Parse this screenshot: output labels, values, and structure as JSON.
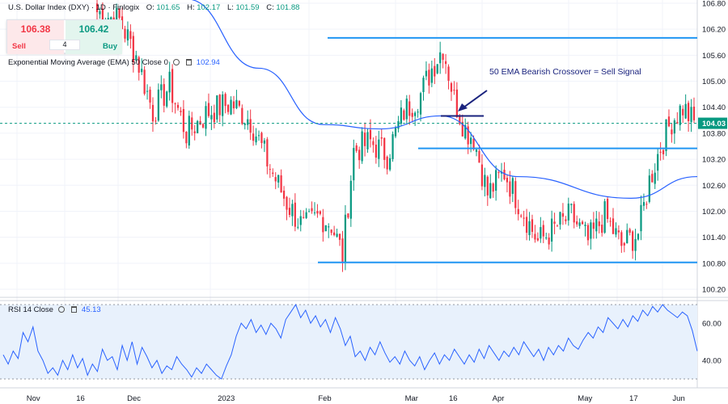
{
  "header": {
    "symbol": "U.S. Dollar Index (DXY) · 1D · Finlogix",
    "ohlc": [
      {
        "label": "O:",
        "value": "101.65"
      },
      {
        "label": "H:",
        "value": "102.17"
      },
      {
        "label": "L:",
        "value": "101.59"
      },
      {
        "label": "C:",
        "value": "101.88"
      }
    ]
  },
  "trade": {
    "sell_price": "106.38",
    "buy_price": "106.42",
    "sell_label": "Sell",
    "buy_label": "Buy",
    "quantity": "4"
  },
  "indicators": {
    "ema_label": "Exponential Moving Average (EMA) 50 Close 0",
    "ema_value": "102.94",
    "rsi_label": "RSI 14 Close",
    "rsi_value": "45.13"
  },
  "annotation": "50 EMA Bearish Crossover = Sell Signal",
  "colors": {
    "up": "#089981",
    "down": "#f23645",
    "ema": "#2962ff",
    "level_lines": "#2196f3",
    "arrow": "#1a237e",
    "current_price": "#089981",
    "rsi_band": "#e8f1fc"
  },
  "chart_data": [
    {
      "type": "candlestick",
      "title": "U.S. Dollar Index (DXY) · 1D · Finlogix",
      "ylim": [
        100.1,
        106.9
      ],
      "y_ticks": [
        "106.80",
        "106.20",
        "105.60",
        "105.00",
        "104.40",
        "103.80",
        "103.20",
        "102.60",
        "102.00",
        "101.40",
        "100.80",
        "100.20"
      ],
      "x_ticks": [
        "Nov",
        "16",
        "Dec",
        "2023",
        "Feb",
        "Mar",
        "16",
        "Apr",
        "May",
        "17",
        "Jun"
      ],
      "current_price": "104.03",
      "candles_count": 154,
      "horizontal_levels": [
        106.0,
        103.45,
        100.82
      ],
      "series": [
        {
          "name": "Exponential Moving Average (EMA) 50 Close 0",
          "key_values": [
            106.9,
            105.3,
            104.0,
            103.9,
            104.2,
            102.8,
            102.3,
            102.8
          ]
        }
      ]
    },
    {
      "type": "line",
      "title": "RSI 14 Close",
      "ylim": [
        27,
        73
      ],
      "y_ticks": [
        "60.00",
        "40.00"
      ],
      "band": [
        30,
        70
      ],
      "series": [
        {
          "name": "RSI 14 Close",
          "points": [
            43,
            38,
            45,
            41,
            55,
            50,
            58,
            45,
            40,
            33,
            36,
            32,
            40,
            35,
            43,
            36,
            41,
            32,
            38,
            34,
            46,
            40,
            42,
            35,
            48,
            40,
            50,
            38,
            47,
            42,
            36,
            40,
            33,
            37,
            35,
            42,
            38,
            35,
            31,
            36,
            33,
            38,
            35,
            32,
            30,
            37,
            43,
            53,
            60,
            57,
            62,
            55,
            59,
            54,
            60,
            57,
            52,
            62,
            66,
            70,
            63,
            67,
            60,
            64,
            58,
            62,
            55,
            63,
            57,
            48,
            53,
            42,
            45,
            40,
            47,
            43,
            50,
            44,
            39,
            42,
            38,
            45,
            40,
            37,
            42,
            35,
            40,
            44,
            38,
            43,
            40,
            46,
            42,
            38,
            43,
            39,
            46,
            41,
            48,
            44,
            40,
            45,
            42,
            47,
            43,
            50,
            46,
            42,
            46,
            40,
            47,
            43,
            48,
            45,
            52,
            48,
            46,
            51,
            55,
            52,
            58,
            55,
            63,
            60,
            57,
            62,
            58,
            64,
            61,
            67,
            64,
            69,
            66,
            70,
            67,
            65,
            63,
            66,
            64,
            56,
            45
          ]
        }
      ]
    }
  ]
}
